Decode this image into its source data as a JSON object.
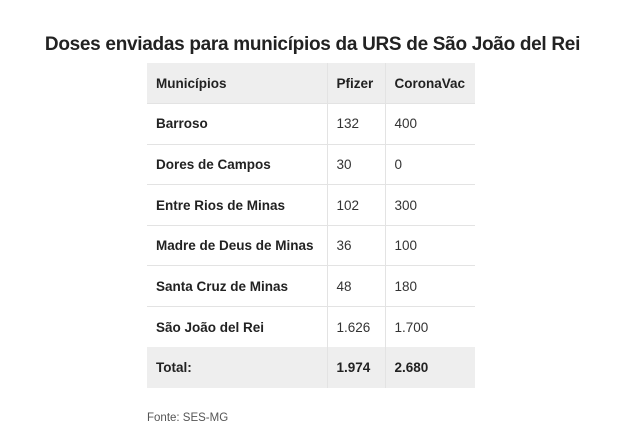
{
  "title": "Doses enviadas para municípios da URS de São João del Rei",
  "table": {
    "headers": [
      "Municípios",
      "Pfizer",
      "CoronaVac"
    ],
    "rows": [
      [
        "Barroso",
        "132",
        "400"
      ],
      [
        "Dores de Campos",
        "30",
        "0"
      ],
      [
        "Entre Rios de Minas",
        "102",
        "300"
      ],
      [
        "Madre de Deus de Minas",
        "36",
        "100"
      ],
      [
        "Santa Cruz de Minas",
        "48",
        "180"
      ],
      [
        "São João del Rei",
        "1.626",
        "1.700"
      ]
    ],
    "total": [
      "Total:",
      "1.974",
      "2.680"
    ]
  },
  "source": "Fonte: SES-MG",
  "colors": {
    "header_bg": "#eeeeee",
    "border": "#e3e3e3",
    "text": "#222222"
  }
}
